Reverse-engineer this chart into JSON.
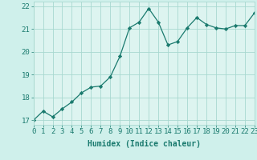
{
  "x": [
    0,
    1,
    2,
    3,
    4,
    5,
    6,
    7,
    8,
    9,
    10,
    11,
    12,
    13,
    14,
    15,
    16,
    17,
    18,
    19,
    20,
    21,
    22,
    23
  ],
  "y": [
    17.0,
    17.4,
    17.15,
    17.5,
    17.8,
    18.2,
    18.45,
    18.5,
    18.9,
    19.8,
    21.05,
    21.3,
    21.9,
    21.3,
    20.3,
    20.45,
    21.05,
    21.5,
    21.2,
    21.05,
    21.0,
    21.15,
    21.15,
    21.7
  ],
  "xlabel": "Humidex (Indice chaleur)",
  "xlim": [
    0,
    23
  ],
  "ylim": [
    16.8,
    22.2
  ],
  "yticks": [
    17,
    18,
    19,
    20,
    21,
    22
  ],
  "xtick_labels": [
    "0",
    "1",
    "2",
    "3",
    "4",
    "5",
    "6",
    "7",
    "8",
    "9",
    "10",
    "11",
    "12",
    "13",
    "14",
    "15",
    "16",
    "17",
    "18",
    "19",
    "20",
    "21",
    "22",
    "23"
  ],
  "line_color": "#1a7a6e",
  "marker": "D",
  "marker_size": 2.2,
  "bg_color": "#cff0eb",
  "grid_color": "#a8d8d0",
  "axes_bg": "#ddf4f0",
  "label_fontsize": 7,
  "tick_fontsize": 6.5
}
